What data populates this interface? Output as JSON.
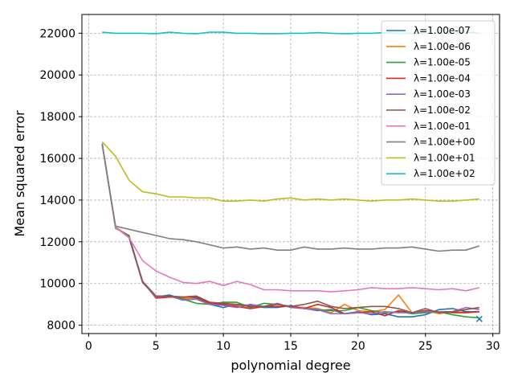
{
  "chart_data": {
    "type": "line",
    "title": "",
    "xlabel": "polynomial degree",
    "ylabel": "Mean squared error",
    "xlim": [
      -0.5,
      30.5
    ],
    "ylim": [
      7600,
      22900
    ],
    "xticks": [
      0,
      5,
      10,
      15,
      20,
      25,
      30
    ],
    "yticks": [
      8000,
      10000,
      12000,
      14000,
      16000,
      18000,
      20000,
      22000
    ],
    "grid": true,
    "legend_position": "top-right",
    "x": [
      1,
      2,
      3,
      4,
      5,
      6,
      7,
      8,
      9,
      10,
      11,
      12,
      13,
      14,
      15,
      16,
      17,
      18,
      19,
      20,
      21,
      22,
      23,
      24,
      25,
      26,
      27,
      28,
      29
    ],
    "series": [
      {
        "name": "λ=1.00e-07",
        "color": "#1f77b4",
        "values": [
          16700,
          12700,
          12200,
          10050,
          9350,
          9450,
          9250,
          9300,
          9000,
          8850,
          9000,
          8950,
          8850,
          8850,
          8950,
          8800,
          8700,
          8750,
          8550,
          8650,
          8500,
          8550,
          8400,
          8400,
          8500,
          8750,
          8800,
          8650,
          8650
        ]
      },
      {
        "name": "λ=1.00e-06",
        "color": "#ff7f0e",
        "values": [
          16700,
          12700,
          12250,
          10100,
          9300,
          9350,
          9300,
          9250,
          9000,
          9100,
          8950,
          8800,
          8900,
          9000,
          8900,
          8850,
          8800,
          8600,
          9000,
          8700,
          8650,
          8750,
          9450,
          8600,
          8700,
          8550,
          8650,
          8600,
          8650
        ]
      },
      {
        "name": "λ=1.00e-05",
        "color": "#2ca02c",
        "values": [
          16700,
          12650,
          12300,
          10050,
          9350,
          9400,
          9250,
          9050,
          9000,
          9100,
          9100,
          8850,
          9050,
          9000,
          8900,
          8800,
          8750,
          8700,
          8700,
          8850,
          8700,
          8600,
          8650,
          8550,
          8600,
          8650,
          8500,
          8400,
          8350
        ]
      },
      {
        "name": "λ=1.00e-04",
        "color": "#d62728",
        "values": [
          16700,
          12700,
          12200,
          10100,
          9300,
          9350,
          9350,
          9350,
          9050,
          9000,
          8900,
          8800,
          8900,
          8900,
          8900,
          8800,
          9000,
          8850,
          8550,
          8600,
          8650,
          8450,
          8700,
          8600,
          8700,
          8650,
          8600,
          8600,
          8650
        ]
      },
      {
        "name": "λ=1.00e-03",
        "color": "#9467bd",
        "values": [
          16700,
          12700,
          12200,
          10050,
          9350,
          9400,
          9200,
          9250,
          9000,
          8950,
          8850,
          9000,
          8900,
          9050,
          8850,
          8800,
          8750,
          8550,
          8550,
          8600,
          8550,
          8650,
          8600,
          8600,
          8650,
          8650,
          8650,
          8850,
          8750
        ]
      },
      {
        "name": "λ=1.00e-02",
        "color": "#8c564b",
        "values": [
          16700,
          12700,
          12250,
          10100,
          9400,
          9400,
          9350,
          9400,
          9100,
          9050,
          9000,
          8900,
          8900,
          9000,
          8900,
          9000,
          9150,
          8900,
          8800,
          8850,
          8900,
          8900,
          8800,
          8600,
          8800,
          8600,
          8650,
          8750,
          8850
        ]
      },
      {
        "name": "λ=1.00e-01",
        "color": "#e377c2",
        "values": [
          16700,
          12700,
          12200,
          11100,
          10600,
          10300,
          10050,
          10000,
          10100,
          9900,
          10100,
          9950,
          9700,
          9700,
          9650,
          9650,
          9650,
          9600,
          9650,
          9700,
          9800,
          9750,
          9750,
          9800,
          9750,
          9700,
          9750,
          9650,
          9800
        ]
      },
      {
        "name": "λ=1.00e+00",
        "color": "#7f7f7f",
        "values": [
          16700,
          12750,
          12600,
          12450,
          12300,
          12150,
          12100,
          12000,
          11850,
          11700,
          11750,
          11650,
          11700,
          11600,
          11600,
          11750,
          11650,
          11650,
          11700,
          11650,
          11650,
          11700,
          11700,
          11750,
          11650,
          11550,
          11600,
          11600,
          11800
        ]
      },
      {
        "name": "λ=1.00e+01",
        "color": "#bcbd22",
        "values": [
          16800,
          16100,
          14950,
          14400,
          14300,
          14150,
          14150,
          14100,
          14100,
          13950,
          13950,
          14000,
          13950,
          14050,
          14100,
          14000,
          14050,
          14000,
          14050,
          14000,
          13950,
          14000,
          14000,
          14050,
          14000,
          13950,
          13950,
          14000,
          14050
        ]
      },
      {
        "name": "λ=1.00e+02",
        "color": "#17becf",
        "values": [
          22050,
          22000,
          22000,
          22000,
          21980,
          22050,
          22000,
          21980,
          22050,
          22050,
          22000,
          22000,
          21980,
          21980,
          22000,
          22000,
          22030,
          22000,
          21980,
          22000,
          22000,
          22030,
          22000,
          22000,
          22000,
          22000,
          22000,
          22050,
          22000
        ]
      }
    ],
    "marker": {
      "x": 29,
      "y": 8300,
      "symbol": "x",
      "color": "#1f77b4"
    }
  }
}
